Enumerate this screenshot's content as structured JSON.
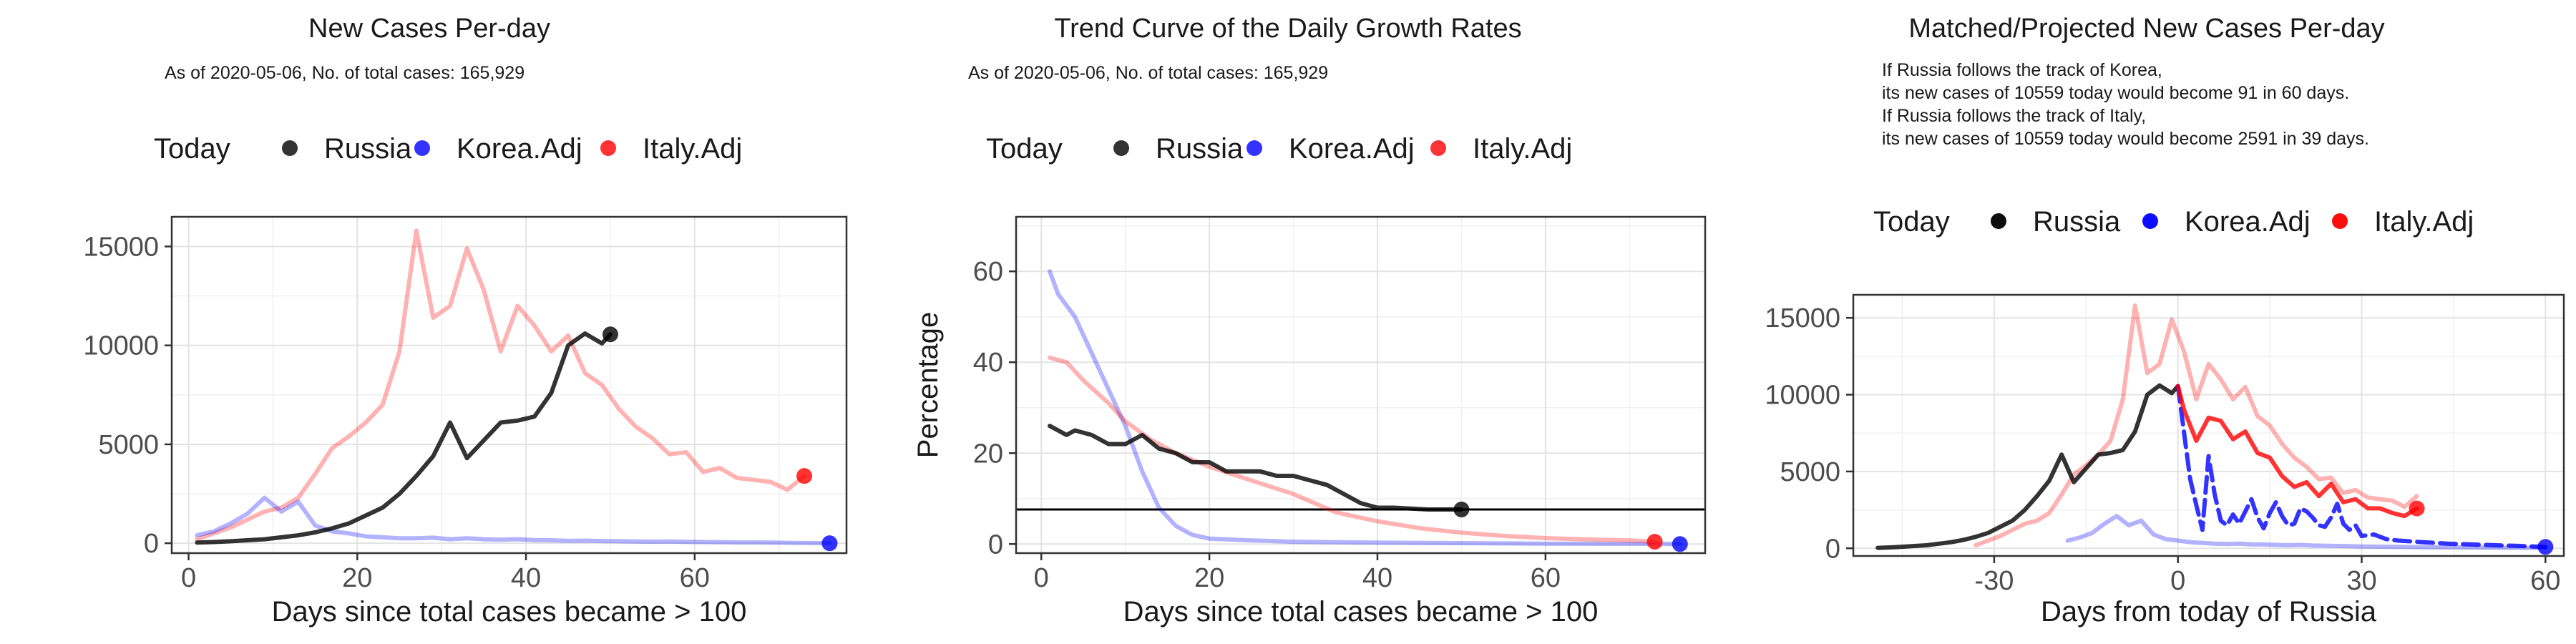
{
  "legend_title": "Today",
  "colors": {
    "russia": "#000000",
    "korea": "#0000FF",
    "italy": "#FF0000"
  },
  "chart_data": [
    {
      "type": "line",
      "title": "New Cases Per-day",
      "subtitle_lines": [
        "As of 2020-05-06, No. of total cases: 165,929"
      ],
      "xlabel": "Days since total cases became > 100",
      "ylabel": "",
      "xlim": [
        -2,
        78
      ],
      "ylim": [
        -500,
        16500
      ],
      "xticks": [
        0,
        20,
        40,
        60
      ],
      "yticks": [
        0,
        5000,
        10000,
        15000
      ],
      "grid": true,
      "legend": {
        "title": "Today",
        "position": "top",
        "entries": [
          "Russia",
          "Korea.Adj",
          "Italy.Adj"
        ]
      },
      "series": [
        {
          "name": "Italy.Adj",
          "color": "#FF0000",
          "opacity": 0.3,
          "marker_at_end": true,
          "x": [
            1,
            3,
            5,
            7,
            9,
            11,
            13,
            15,
            17,
            19,
            21,
            23,
            25,
            27,
            29,
            31,
            33,
            35,
            37,
            39,
            41,
            43,
            45,
            47,
            49,
            51,
            53,
            55,
            57,
            59,
            61,
            63,
            65,
            67,
            69,
            71,
            73
          ],
          "y": [
            200,
            500,
            800,
            1200,
            1600,
            1800,
            2300,
            3500,
            4800,
            5400,
            6100,
            7000,
            9700,
            15800,
            11400,
            12000,
            14900,
            12800,
            9700,
            12000,
            11000,
            9700,
            10500,
            8600,
            8000,
            6800,
            5900,
            5300,
            4500,
            4600,
            3600,
            3800,
            3300,
            3200,
            3100,
            2700,
            3400
          ]
        },
        {
          "name": "Korea.Adj",
          "color": "#0000FF",
          "opacity": 0.3,
          "marker_at_end": true,
          "x": [
            1,
            3,
            5,
            7,
            9,
            11,
            13,
            15,
            17,
            19,
            21,
            23,
            25,
            27,
            29,
            31,
            33,
            35,
            37,
            39,
            41,
            43,
            45,
            47,
            49,
            51,
            53,
            55,
            57,
            59,
            61,
            63,
            65,
            67,
            69,
            71,
            73,
            75,
            76
          ],
          "y": [
            400,
            600,
            1000,
            1500,
            2300,
            1600,
            2100,
            900,
            600,
            500,
            350,
            300,
            250,
            250,
            280,
            200,
            250,
            200,
            180,
            200,
            160,
            150,
            120,
            130,
            110,
            100,
            90,
            80,
            90,
            70,
            60,
            50,
            40,
            40,
            30,
            20,
            10,
            5,
            0
          ]
        },
        {
          "name": "Russia",
          "color": "#000000",
          "opacity": 0.8,
          "marker_at_end": true,
          "x": [
            1,
            3,
            5,
            7,
            9,
            11,
            13,
            15,
            17,
            19,
            21,
            23,
            25,
            27,
            29,
            31,
            33,
            35,
            37,
            39,
            41,
            43,
            45,
            47,
            49,
            50
          ],
          "y": [
            30,
            60,
            100,
            150,
            200,
            300,
            400,
            550,
            750,
            1000,
            1400,
            1800,
            2500,
            3400,
            4400,
            6100,
            4300,
            5200,
            6100,
            6200,
            6400,
            7600,
            10000,
            10600,
            10100,
            10559
          ]
        }
      ]
    },
    {
      "type": "line",
      "title": "Trend Curve of the Daily Growth Rates",
      "subtitle_lines": [
        "As of 2020-05-06, No. of total cases: 165,929"
      ],
      "xlabel": "Days since total cases became > 100",
      "ylabel": "Percentage",
      "xlim": [
        -3,
        79
      ],
      "ylim": [
        -2,
        72
      ],
      "xticks": [
        0,
        20,
        40,
        60
      ],
      "yticks": [
        0,
        20,
        40,
        60
      ],
      "grid": true,
      "hline": 7.6,
      "legend": {
        "title": "Today",
        "position": "top",
        "entries": [
          "Russia",
          "Korea.Adj",
          "Italy.Adj"
        ]
      },
      "series": [
        {
          "name": "Korea.Adj",
          "color": "#0000FF",
          "opacity": 0.3,
          "marker_at_end": true,
          "x": [
            1,
            2,
            4,
            6,
            8,
            10,
            12,
            14,
            16,
            18,
            20,
            25,
            30,
            40,
            50,
            60,
            70,
            76
          ],
          "y": [
            60,
            55,
            50,
            42,
            34,
            26,
            16,
            8,
            4,
            2,
            1.2,
            0.8,
            0.5,
            0.3,
            0.2,
            0.1,
            0.05,
            0
          ]
        },
        {
          "name": "Italy.Adj",
          "color": "#FF0000",
          "opacity": 0.3,
          "marker_at_end": true,
          "x": [
            1,
            3,
            5,
            8,
            10,
            13,
            16,
            20,
            25,
            30,
            35,
            40,
            45,
            50,
            55,
            60,
            65,
            70,
            73
          ],
          "y": [
            41,
            40,
            36,
            31,
            27,
            23,
            20,
            17,
            14,
            11,
            7,
            5,
            3.5,
            2.5,
            1.8,
            1.3,
            1,
            0.8,
            0.5
          ]
        },
        {
          "name": "Russia",
          "color": "#000000",
          "opacity": 0.8,
          "marker_at_end": true,
          "x": [
            1,
            2,
            3,
            4,
            6,
            8,
            10,
            12,
            14,
            16,
            18,
            20,
            22,
            24,
            26,
            28,
            30,
            32,
            34,
            36,
            38,
            40,
            42,
            44,
            46,
            48,
            50
          ],
          "y": [
            26,
            25,
            24,
            25,
            24,
            22,
            22,
            24,
            21,
            20,
            18,
            18,
            16,
            16,
            16,
            15,
            15,
            14,
            13,
            11,
            9,
            8,
            8,
            7.8,
            7.6,
            7.6,
            7.6
          ]
        }
      ]
    },
    {
      "type": "line",
      "title": "Matched/Projected New Cases Per-day",
      "subtitle_lines": [
        "If Russia follows the track of Korea,",
        "its new cases of 10559 today would become 91 in 60 days.",
        "If Russia follows the track of Italy,",
        "its new cases of 10559 today would become 2591 in 39 days."
      ],
      "xlabel": "Days from today of Russia",
      "ylabel": "",
      "xlim": [
        -53,
        63
      ],
      "ylim": [
        -500,
        16500
      ],
      "xticks": [
        -30,
        0,
        30,
        60
      ],
      "yticks": [
        0,
        5000,
        10000,
        15000
      ],
      "grid": true,
      "legend": {
        "title": "Today",
        "position": "top",
        "entries": [
          "Russia",
          "Korea.Adj",
          "Italy.Adj"
        ]
      },
      "series": [
        {
          "name": "Italy.Adj",
          "color": "#FF0000",
          "opacity": 0.3,
          "marker_at_end": false,
          "x": [
            -33,
            -31,
            -29,
            -27,
            -25,
            -23,
            -21,
            -19,
            -17,
            -15,
            -13,
            -11,
            -9,
            -7,
            -5,
            -3,
            -1,
            1,
            3,
            5,
            7,
            9,
            11,
            13,
            15,
            17,
            19,
            21,
            23,
            25,
            27,
            29,
            31,
            33,
            35,
            37,
            39
          ],
          "y": [
            200,
            500,
            800,
            1200,
            1600,
            1800,
            2300,
            3500,
            4800,
            5400,
            6100,
            7000,
            9700,
            15800,
            11400,
            12000,
            14900,
            12800,
            9700,
            12000,
            11000,
            9700,
            10500,
            8600,
            8000,
            6800,
            5900,
            5300,
            4500,
            4600,
            3600,
            3800,
            3300,
            3200,
            3100,
            2700,
            3400
          ]
        },
        {
          "name": "Korea.Adj",
          "color": "#0000FF",
          "opacity": 0.3,
          "marker_at_end": false,
          "x": [
            -18,
            -16,
            -14,
            -12,
            -10,
            -8,
            -6,
            -4,
            -2,
            0,
            2,
            4,
            6,
            8,
            10,
            12,
            14,
            16,
            18,
            20,
            22,
            24,
            26,
            28,
            30,
            32,
            34,
            36,
            38,
            40,
            44,
            48,
            52,
            56,
            60
          ],
          "y": [
            500,
            700,
            1000,
            1600,
            2100,
            1500,
            1800,
            900,
            600,
            500,
            400,
            350,
            300,
            280,
            300,
            250,
            250,
            220,
            200,
            220,
            180,
            170,
            150,
            140,
            120,
            110,
            100,
            90,
            80,
            70,
            60,
            50,
            40,
            30,
            20
          ]
        },
        {
          "name": "Russia",
          "color": "#000000",
          "opacity": 0.8,
          "marker_at_end": false,
          "x": [
            -49,
            -47,
            -45,
            -43,
            -41,
            -39,
            -37,
            -35,
            -33,
            -31,
            -29,
            -27,
            -25,
            -23,
            -21,
            -19,
            -17,
            -15,
            -13,
            -11,
            -9,
            -7,
            -5,
            -3,
            -1,
            0
          ],
          "y": [
            30,
            60,
            100,
            150,
            200,
            300,
            400,
            550,
            750,
            1000,
            1400,
            1800,
            2500,
            3400,
            4400,
            6100,
            4300,
            5200,
            6100,
            6200,
            6400,
            7600,
            10000,
            10600,
            10100,
            10559
          ]
        },
        {
          "name": "Korea.Adj",
          "color": "#0000FF",
          "opacity": 0.8,
          "dashed": true,
          "marker_at_end": true,
          "x": [
            0,
            1,
            2,
            3,
            4,
            5,
            6,
            7,
            8,
            9,
            10,
            11,
            12,
            13,
            14,
            15,
            16,
            17,
            18,
            19,
            20,
            21,
            22,
            23,
            24,
            25,
            26,
            27,
            28,
            29,
            30,
            32,
            34,
            36,
            40,
            44,
            48,
            52,
            56,
            60
          ],
          "y": [
            10559,
            7500,
            4500,
            2800,
            1200,
            6000,
            3500,
            1800,
            1500,
            2200,
            1600,
            2400,
            3200,
            2000,
            1300,
            2300,
            3000,
            2100,
            1500,
            1600,
            2600,
            2400,
            2000,
            1500,
            1400,
            2000,
            2900,
            1600,
            1200,
            1500,
            800,
            900,
            600,
            500,
            400,
            300,
            250,
            200,
            150,
            91
          ]
        },
        {
          "name": "Italy.Adj",
          "color": "#FF0000",
          "opacity": 0.8,
          "marker_at_end": true,
          "x": [
            0,
            1,
            3,
            5,
            7,
            9,
            11,
            13,
            15,
            17,
            19,
            21,
            23,
            25,
            27,
            29,
            31,
            33,
            35,
            37,
            39
          ],
          "y": [
            10559,
            9000,
            7000,
            8500,
            8300,
            7100,
            7600,
            6200,
            5900,
            4700,
            4000,
            4300,
            3400,
            4200,
            3000,
            3200,
            2600,
            2600,
            2300,
            2100,
            2591
          ]
        }
      ]
    }
  ]
}
